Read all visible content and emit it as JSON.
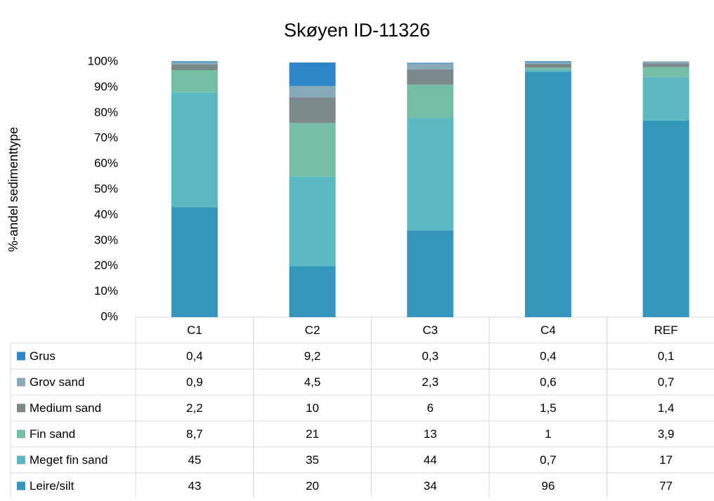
{
  "chart_data": {
    "type": "stacked_bar",
    "title": "Skøyen ID-11326",
    "y_label": "%-andel sedimenttype",
    "categories": [
      "C1",
      "C2",
      "C3",
      "C4",
      "REF"
    ],
    "ylim": [
      0,
      100
    ],
    "yticks": [
      {
        "value": 0,
        "label": "0%"
      },
      {
        "value": 10,
        "label": "10%"
      },
      {
        "value": 20,
        "label": "20%"
      },
      {
        "value": 30,
        "label": "30%"
      },
      {
        "value": 40,
        "label": "40%"
      },
      {
        "value": 50,
        "label": "50%"
      },
      {
        "value": 60,
        "label": "60%"
      },
      {
        "value": 70,
        "label": "70%"
      },
      {
        "value": 80,
        "label": "80%"
      },
      {
        "value": 90,
        "label": "90%"
      },
      {
        "value": 100,
        "label": "100%"
      }
    ],
    "series": [
      {
        "name": "Grus",
        "color": "#2e86c8",
        "values": [
          0.4,
          9.2,
          0.3,
          0.4,
          0.1
        ],
        "value_labels": [
          "0,4",
          "9,2",
          "0,3",
          "0,4",
          "0,1"
        ]
      },
      {
        "name": "Grov sand",
        "color": "#86aab8",
        "values": [
          0.9,
          4.5,
          2.3,
          0.6,
          0.7
        ],
        "value_labels": [
          "0,9",
          "4,5",
          "2,3",
          "0,6",
          "0,7"
        ]
      },
      {
        "name": "Medium sand",
        "color": "#7b898b",
        "values": [
          2.2,
          10,
          6,
          1.5,
          1.4
        ],
        "value_labels": [
          "2,2",
          "10",
          "6",
          "1,5",
          "1,4"
        ]
      },
      {
        "name": "Fin sand",
        "color": "#74bfa4",
        "values": [
          8.7,
          21,
          13,
          1,
          3.9
        ],
        "value_labels": [
          "8,7",
          "21",
          "13",
          "1",
          "3,9"
        ]
      },
      {
        "name": "Meget fin sand",
        "color": "#5ab8c0",
        "values": [
          45,
          35,
          44,
          0.7,
          17
        ],
        "value_labels": [
          "45",
          "35",
          "44",
          "0,7",
          "17"
        ]
      },
      {
        "name": "Leire/silt",
        "color": "#3596bc",
        "values": [
          43,
          20,
          34,
          96,
          77
        ],
        "value_labels": [
          "43",
          "20",
          "34",
          "96",
          "77"
        ]
      }
    ]
  }
}
